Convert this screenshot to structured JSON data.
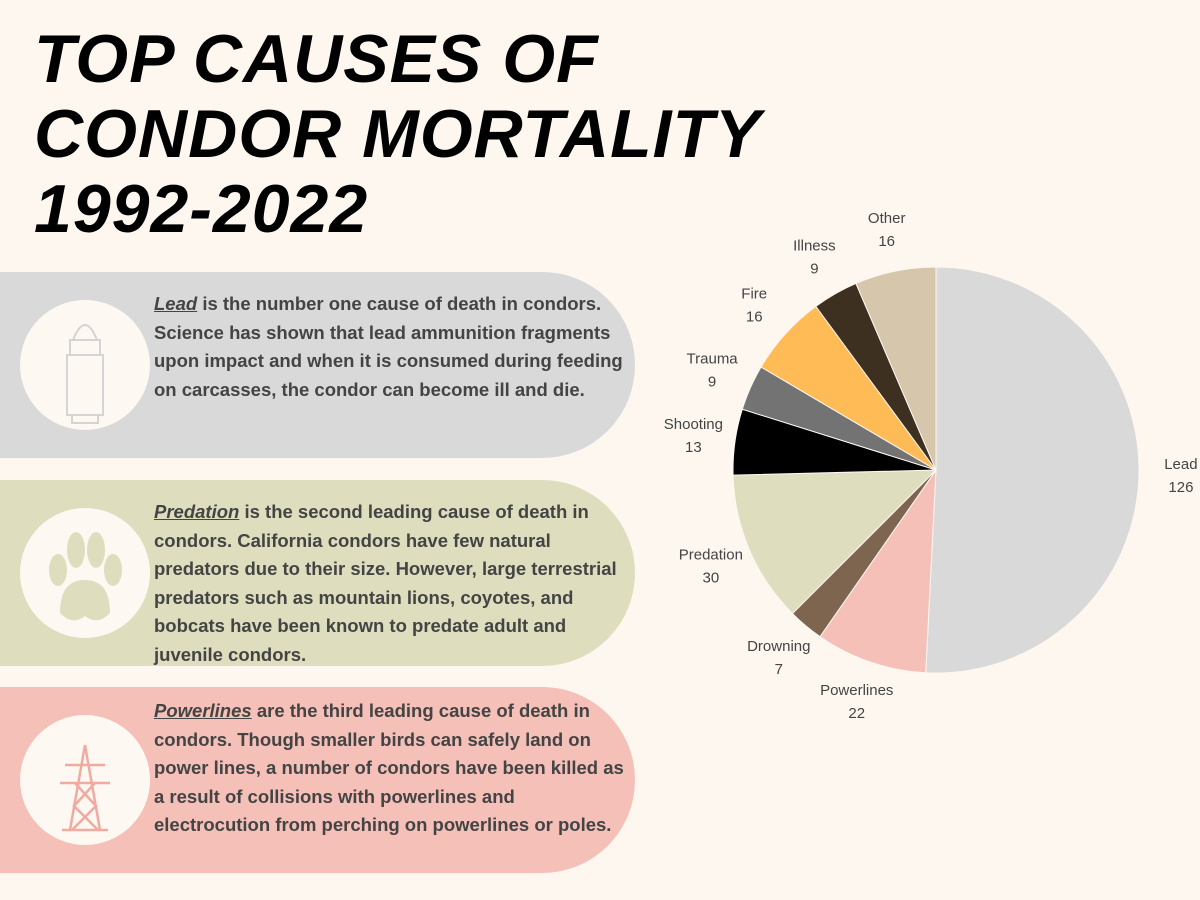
{
  "title": [
    "TOP CAUSES OF",
    "CONDOR MORTALITY",
    "1992-2022"
  ],
  "panels": [
    {
      "keyword": "Lead",
      "text": " is the number one cause of death in condors. Science has shown that lead ammunition fragments upon impact and when it is consumed during feeding on carcasses, the condor can become ill and die."
    },
    {
      "keyword": "Predation",
      "text": " is the second leading cause of death in condors. California condors have few natural predators due to their size. However, large terrestrial predators such as mountain lions, coyotes, and bobcats have been known to predate adult and juvenile condors."
    },
    {
      "keyword": "Powerlines",
      "text": " are the third leading cause of death in condors. Though smaller birds can safely land on power lines, a number of condors have been killed as a result of collisions with powerlines and electrocution from perching on powerlines or poles."
    }
  ],
  "chart_data": {
    "type": "pie",
    "categories": [
      "Lead",
      "Powerlines",
      "Drowning",
      "Predation",
      "Shooting",
      "Trauma",
      "Fire",
      "Illness",
      "Other"
    ],
    "values": [
      126,
      22,
      7,
      30,
      13,
      9,
      16,
      9,
      16
    ],
    "colors": [
      "#d9d9d9",
      "#f4c0b8",
      "#7d6550",
      "#dedebf",
      "#000000",
      "#737373",
      "#ffbb55",
      "#3d3020",
      "#d6c6ab"
    ]
  }
}
